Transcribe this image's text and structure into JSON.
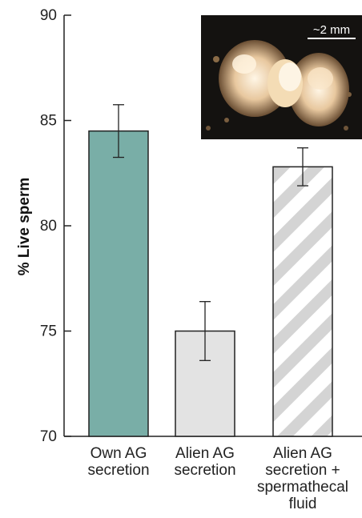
{
  "chart_data": {
    "type": "bar",
    "ylabel": "% Live sperm",
    "ylim": [
      70,
      90
    ],
    "yticks": [
      70,
      75,
      80,
      85,
      90
    ],
    "categories": [
      [
        "Own AG",
        "secretion"
      ],
      [
        "Alien AG",
        "secretion"
      ],
      [
        "Alien AG",
        "secretion +",
        "spermathecal",
        "fluid"
      ]
    ],
    "values": [
      84.5,
      75.0,
      82.8
    ],
    "errors": [
      1.25,
      1.4,
      0.9
    ],
    "fills": [
      "teal",
      "gray",
      "hatched"
    ],
    "colors": {
      "teal": "#79aea7",
      "gray": "#e3e3e3",
      "hatch": "#d4d4d4"
    },
    "grid": false,
    "inset": {
      "scale_label": "~2 mm"
    }
  }
}
